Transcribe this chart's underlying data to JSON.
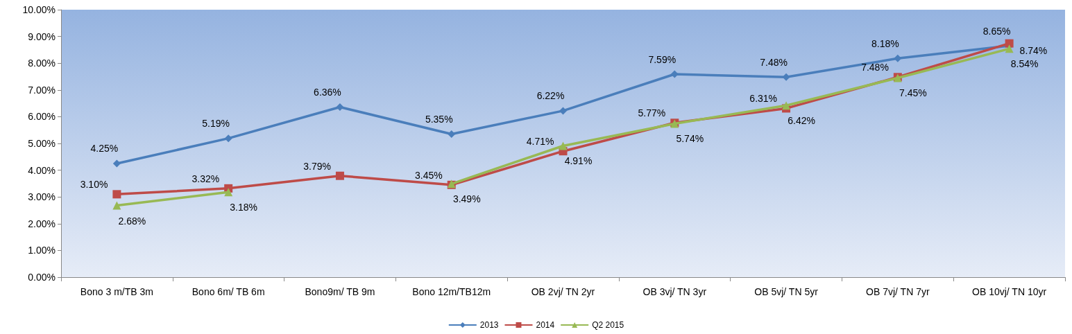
{
  "chart_data": {
    "type": "line",
    "categories": [
      "Bono 3 m/TB 3m",
      "Bono 6m/ TB 6m",
      "Bono9m/ TB 9m",
      "Bono 12m/TB12m",
      "OB 2vj/ TN 2yr",
      "OB 3vj/ TN 3yr",
      "OB 5vj/ TN 5yr",
      "OB 7vj/ TN 7yr",
      "OB 10vj/ TN 10yr"
    ],
    "series": [
      {
        "name": "2013",
        "color": "#4a7ebb",
        "marker": "diamond",
        "values": [
          4.25,
          5.19,
          6.36,
          5.35,
          6.22,
          7.59,
          7.48,
          8.18,
          8.65
        ],
        "value_labels": [
          "4.25%",
          "5.19%",
          "6.36%",
          "5.35%",
          "6.22%",
          "7.59%",
          "7.48%",
          "8.18%",
          "8.65%"
        ]
      },
      {
        "name": "2014",
        "color": "#be4b48",
        "marker": "square",
        "values": [
          3.1,
          3.32,
          3.79,
          3.45,
          4.71,
          5.77,
          6.31,
          7.48,
          8.74
        ],
        "value_labels": [
          "3.10%",
          "3.32%",
          "3.79%",
          "3.45%",
          "4.71%",
          "5.77%",
          "6.31%",
          "7.48%",
          "8.74%"
        ]
      },
      {
        "name": "Q2 2015",
        "color": "#98b954",
        "marker": "triangle",
        "values": [
          2.68,
          3.18,
          null,
          3.49,
          4.91,
          5.74,
          6.42,
          7.45,
          8.54
        ],
        "value_labels": [
          "2.68%",
          "3.18%",
          null,
          "3.49%",
          "4.91%",
          "5.74%",
          "6.42%",
          "7.45%",
          "8.54%"
        ]
      }
    ],
    "ylim": [
      0,
      10
    ],
    "yticks": [
      {
        "value": 0,
        "label": "0.00%"
      },
      {
        "value": 1,
        "label": "1.00%"
      },
      {
        "value": 2,
        "label": "2.00%"
      },
      {
        "value": 3,
        "label": "3.00%"
      },
      {
        "value": 4,
        "label": "4.00%"
      },
      {
        "value": 5,
        "label": "5.00%"
      },
      {
        "value": 6,
        "label": "6.00%"
      },
      {
        "value": 7,
        "label": "7.00%"
      },
      {
        "value": 8,
        "label": "8.00%"
      },
      {
        "value": 9,
        "label": "9.00%"
      },
      {
        "value": 10,
        "label": "10.00%"
      }
    ],
    "grid": false,
    "legend": "bottom"
  }
}
